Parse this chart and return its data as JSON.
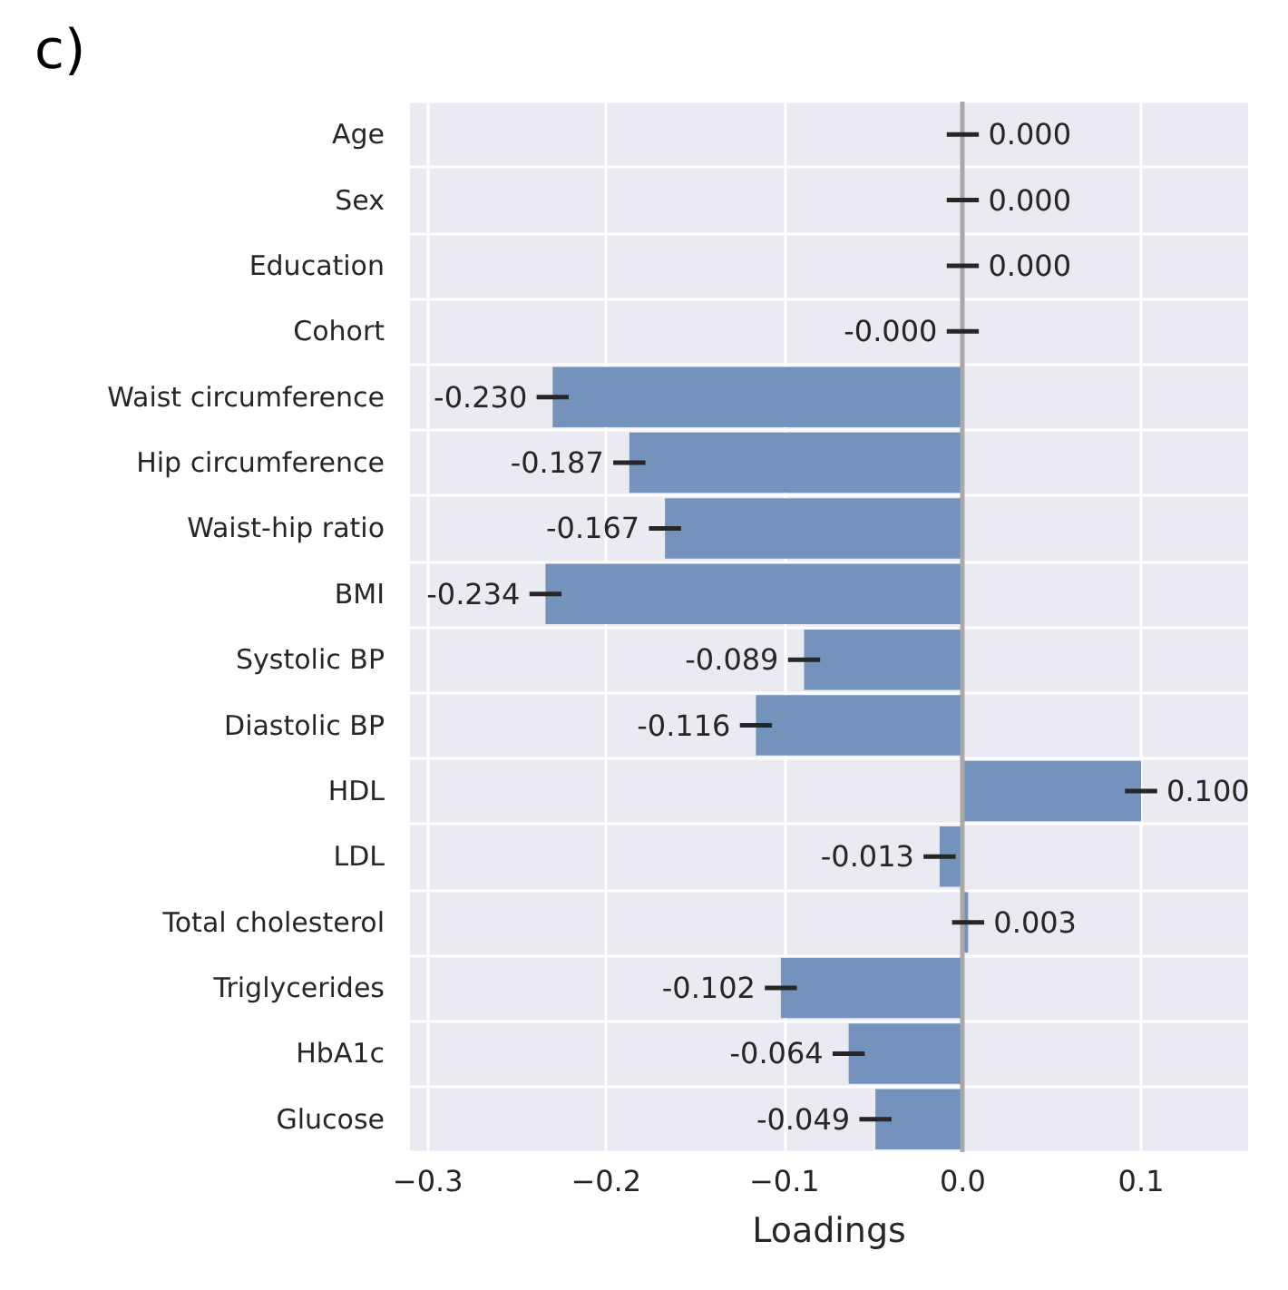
{
  "chart_data": {
    "type": "bar",
    "orientation": "horizontal",
    "title": "c)",
    "xlabel": "Loadings",
    "categories": [
      "Age",
      "Sex",
      "Education",
      "Cohort",
      "Waist circumference",
      "Hip circumference",
      "Waist-hip ratio",
      "BMI",
      "Systolic BP",
      "Diastolic BP",
      "HDL",
      "LDL",
      "Total cholesterol",
      "Triglycerides",
      "HbA1c",
      "Glucose"
    ],
    "values": [
      0.0,
      0.0,
      0.0,
      -0.0,
      -0.23,
      -0.187,
      -0.167,
      -0.234,
      -0.089,
      -0.116,
      0.1,
      -0.013,
      0.003,
      -0.102,
      -0.064,
      -0.049
    ],
    "errors": [
      0.009,
      0.009,
      0.009,
      0.009,
      0.009,
      0.009,
      0.009,
      0.009,
      0.009,
      0.009,
      0.009,
      0.009,
      0.009,
      0.009,
      0.009,
      0.009
    ],
    "value_labels": [
      "0.000",
      "0.000",
      "0.000",
      "-0.000",
      "-0.230",
      "-0.187",
      "-0.167",
      "-0.234",
      "-0.089",
      "-0.116",
      "0.100",
      "-0.013",
      "0.003",
      "-0.102",
      "-0.064",
      "-0.049"
    ],
    "color": "#7393bd",
    "xlim": [
      -0.31,
      0.16
    ],
    "xticks": [
      {
        "value": -0.3,
        "label": "−0.3"
      },
      {
        "value": -0.2,
        "label": "−0.2"
      },
      {
        "value": -0.1,
        "label": "−0.1"
      },
      {
        "value": 0,
        "label": "0.0"
      },
      {
        "value": 0.1,
        "label": "0.1"
      }
    ],
    "ref_lines": [
      {
        "axis": "x",
        "value": 0,
        "color": "#a8a8a8"
      }
    ],
    "grid": true
  }
}
